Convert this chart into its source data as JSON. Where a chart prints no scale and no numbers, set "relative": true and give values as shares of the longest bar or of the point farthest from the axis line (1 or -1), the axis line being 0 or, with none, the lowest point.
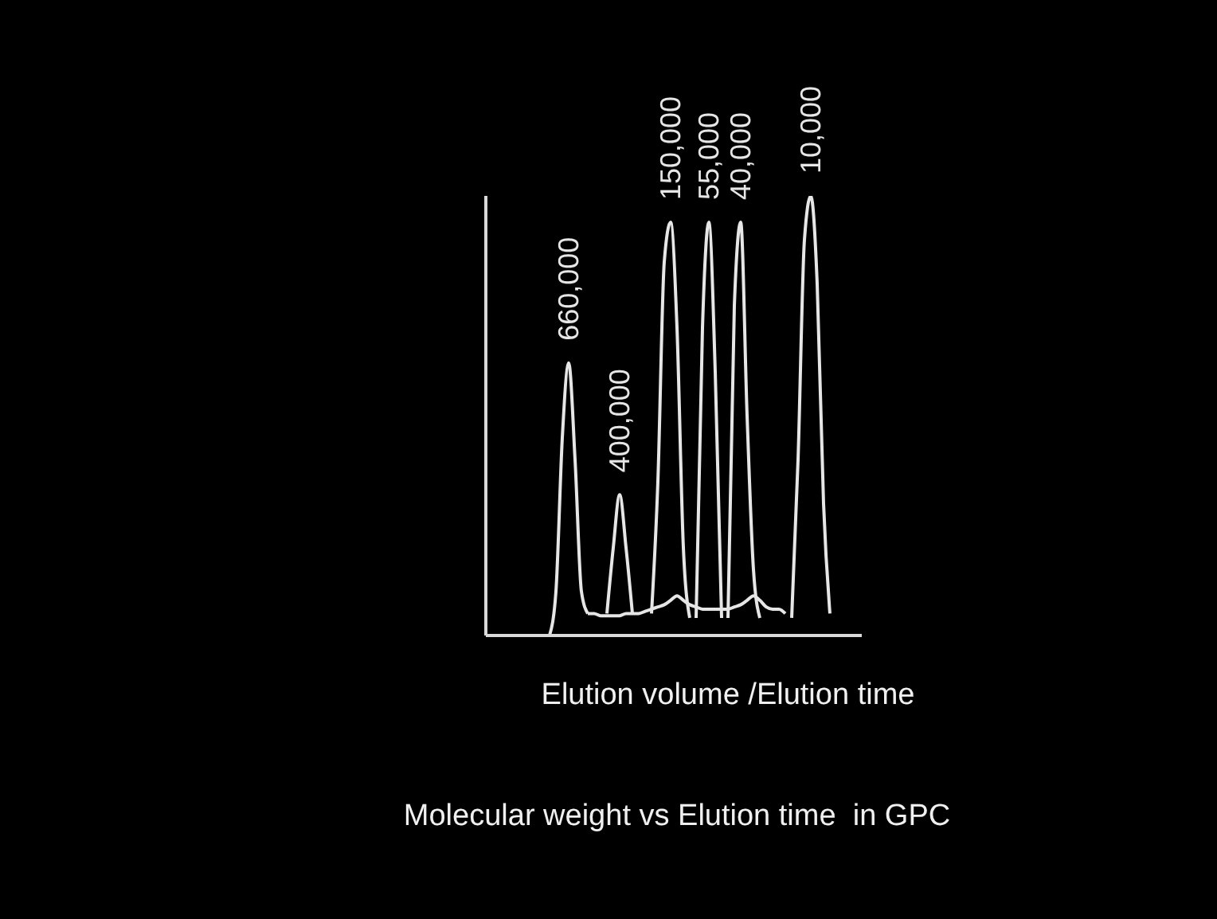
{
  "chart_data": {
    "type": "line",
    "title": "Molecular weight vs Elution time  in GPC",
    "xlabel": "Elution volume /Elution time",
    "relative": true,
    "marker": "none",
    "line_style": "solid",
    "categories": [
      null,
      null,
      null,
      null,
      null,
      null,
      null,
      null,
      null,
      null,
      null,
      null,
      null,
      null,
      null,
      null,
      null,
      null,
      null,
      null,
      null,
      null,
      null,
      null,
      null,
      null,
      null,
      null,
      null,
      null,
      null,
      null,
      null,
      null,
      null,
      null,
      null,
      null,
      null,
      null,
      null,
      null,
      null,
      null,
      null,
      null,
      null,
      null,
      null,
      null,
      null,
      null,
      null,
      null,
      null,
      null,
      null,
      null,
      null,
      null
    ],
    "annotations": [
      "660,000",
      "400,000",
      "150,000",
      "55,000",
      "40,000",
      "10,000"
    ],
    "series": [
      {
        "color": "#e6e6e6",
        "values": [
          null,
          null,
          null,
          null,
          null,
          null,
          null,
          null,
          null,
          null,
          0,
          0.1,
          0.45,
          0.62,
          0.4,
          0.1,
          0.05,
          null,
          null,
          null,
          null,
          null,
          null,
          null,
          null,
          null,
          null,
          null,
          null,
          null,
          null,
          null,
          null,
          null,
          null,
          null,
          null,
          null,
          null,
          null,
          null,
          null,
          null,
          null,
          null,
          null,
          null,
          null,
          null,
          null,
          null,
          null,
          null,
          null,
          null,
          null,
          null,
          null,
          null,
          null
        ]
      },
      {
        "color": "#e6e6e6",
        "values": [
          null,
          null,
          null,
          null,
          null,
          null,
          null,
          null,
          null,
          null,
          null,
          null,
          null,
          null,
          null,
          null,
          null,
          null,
          null,
          0.05,
          0.2,
          0.32,
          0.2,
          0.05,
          null,
          null,
          null,
          null,
          null,
          null,
          null,
          null,
          null,
          null,
          null,
          null,
          null,
          null,
          null,
          null,
          null,
          null,
          null,
          null,
          null,
          null,
          null,
          null,
          null,
          null,
          null,
          null,
          null,
          null,
          null,
          null,
          null,
          null,
          null,
          null
        ]
      },
      {
        "color": "#e6e6e6",
        "values": [
          null,
          null,
          null,
          null,
          null,
          null,
          null,
          null,
          null,
          null,
          null,
          null,
          null,
          null,
          null,
          null,
          null,
          null,
          null,
          null,
          null,
          null,
          null,
          null,
          null,
          null,
          0.05,
          0.35,
          0.85,
          0.94,
          0.7,
          0.2,
          0.04,
          null,
          null,
          null,
          null,
          null,
          null,
          null,
          null,
          null,
          null,
          null,
          null,
          null,
          null,
          null,
          null,
          null,
          null,
          null,
          null,
          null,
          null,
          null,
          null,
          null,
          null,
          null
        ]
      },
      {
        "color": "#e6e6e6",
        "values": [
          null,
          null,
          null,
          null,
          null,
          null,
          null,
          null,
          null,
          null,
          null,
          null,
          null,
          null,
          null,
          null,
          null,
          null,
          null,
          null,
          null,
          null,
          null,
          null,
          null,
          null,
          null,
          null,
          null,
          null,
          null,
          null,
          null,
          0.04,
          0.7,
          0.94,
          0.6,
          0.04,
          null,
          null,
          null,
          null,
          null,
          null,
          null,
          null,
          null,
          null,
          null,
          null,
          null,
          null,
          null,
          null,
          null,
          null,
          null,
          null,
          null,
          null
        ]
      },
      {
        "color": "#e6e6e6",
        "values": [
          null,
          null,
          null,
          null,
          null,
          null,
          null,
          null,
          null,
          null,
          null,
          null,
          null,
          null,
          null,
          null,
          null,
          null,
          null,
          null,
          null,
          null,
          null,
          null,
          null,
          null,
          null,
          null,
          null,
          null,
          null,
          null,
          null,
          null,
          null,
          null,
          null,
          null,
          0.04,
          0.75,
          0.94,
          0.5,
          0.15,
          0.04,
          null,
          null,
          null,
          null,
          null,
          null,
          null,
          null,
          null,
          null,
          null,
          null,
          null,
          null,
          null,
          null
        ]
      },
      {
        "color": "#e6e6e6",
        "values": [
          null,
          null,
          null,
          null,
          null,
          null,
          null,
          null,
          null,
          null,
          null,
          null,
          null,
          null,
          null,
          null,
          null,
          null,
          null,
          null,
          null,
          null,
          null,
          null,
          null,
          null,
          null,
          null,
          null,
          null,
          null,
          null,
          null,
          null,
          null,
          null,
          null,
          null,
          null,
          null,
          null,
          null,
          null,
          null,
          null,
          null,
          null,
          null,
          0.04,
          0.4,
          0.9,
          1,
          0.8,
          0.3,
          0.05,
          null,
          null,
          null,
          null,
          null
        ]
      },
      {
        "color": "#e6e6e6",
        "values": [
          null,
          null,
          null,
          null,
          null,
          null,
          null,
          null,
          null,
          null,
          null,
          null,
          null,
          null,
          null,
          null,
          0.05,
          0.05,
          0.045,
          0.045,
          0.045,
          0.045,
          0.05,
          0.05,
          0.05,
          0.055,
          0.06,
          0.065,
          0.07,
          0.08,
          0.09,
          0.08,
          0.07,
          0.065,
          0.06,
          0.06,
          0.06,
          0.06,
          0.06,
          0.065,
          0.07,
          0.08,
          0.09,
          0.08,
          0.065,
          0.06,
          0.06,
          0.05,
          null,
          null,
          null,
          null,
          null,
          null,
          null,
          null,
          null,
          null,
          null,
          null
        ]
      }
    ]
  }
}
